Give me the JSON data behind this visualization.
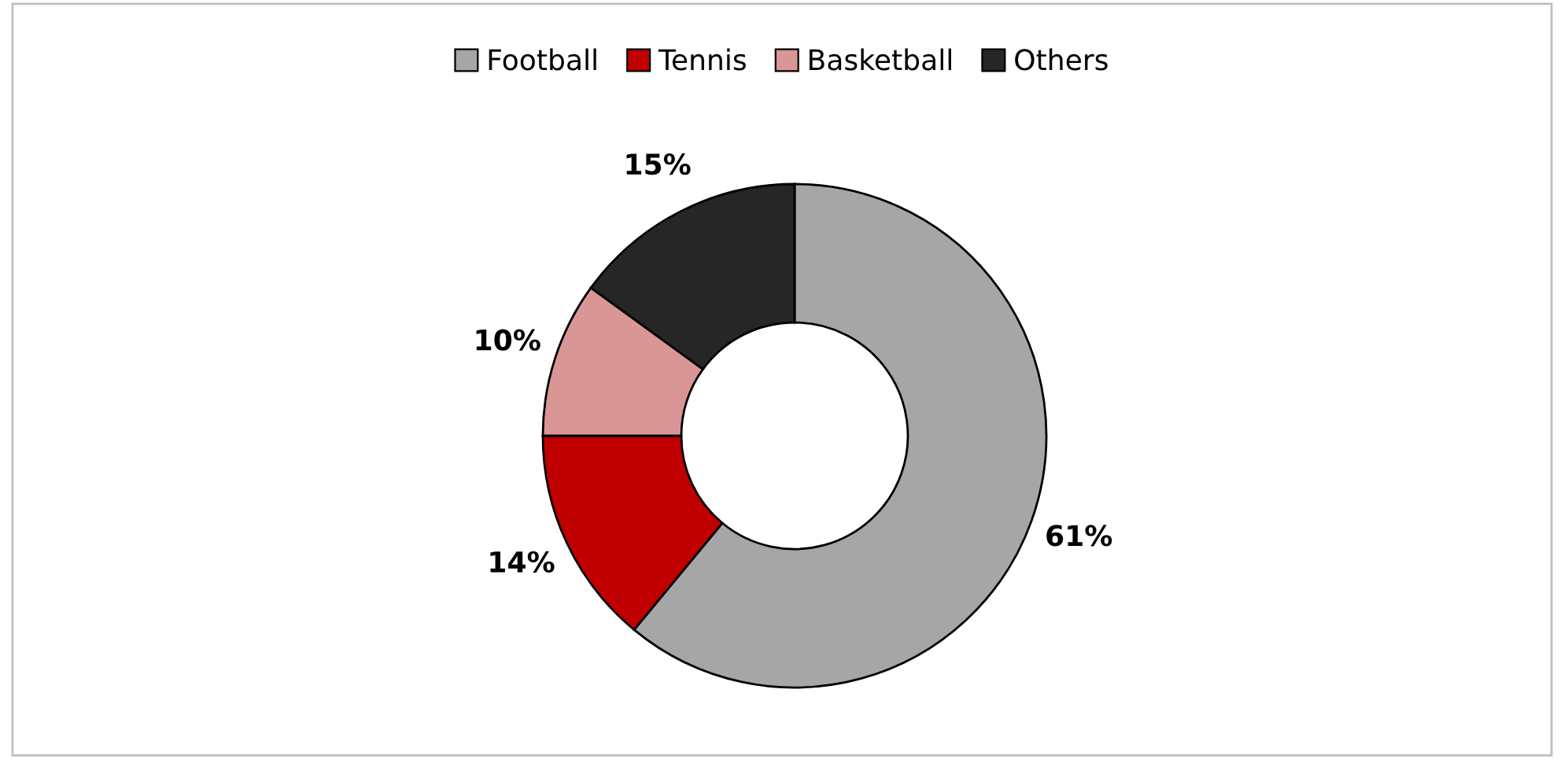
{
  "chart_data": {
    "type": "donut",
    "categories": [
      "Football",
      "Tennis",
      "Basketball",
      "Others"
    ],
    "values": [
      61,
      14,
      10,
      15
    ],
    "colors": [
      "#a6a6a6",
      "#c00000",
      "#da9694",
      "#262626"
    ],
    "value_labels": [
      "61%",
      "14%",
      "10%",
      "15%"
    ],
    "legend": "top"
  }
}
